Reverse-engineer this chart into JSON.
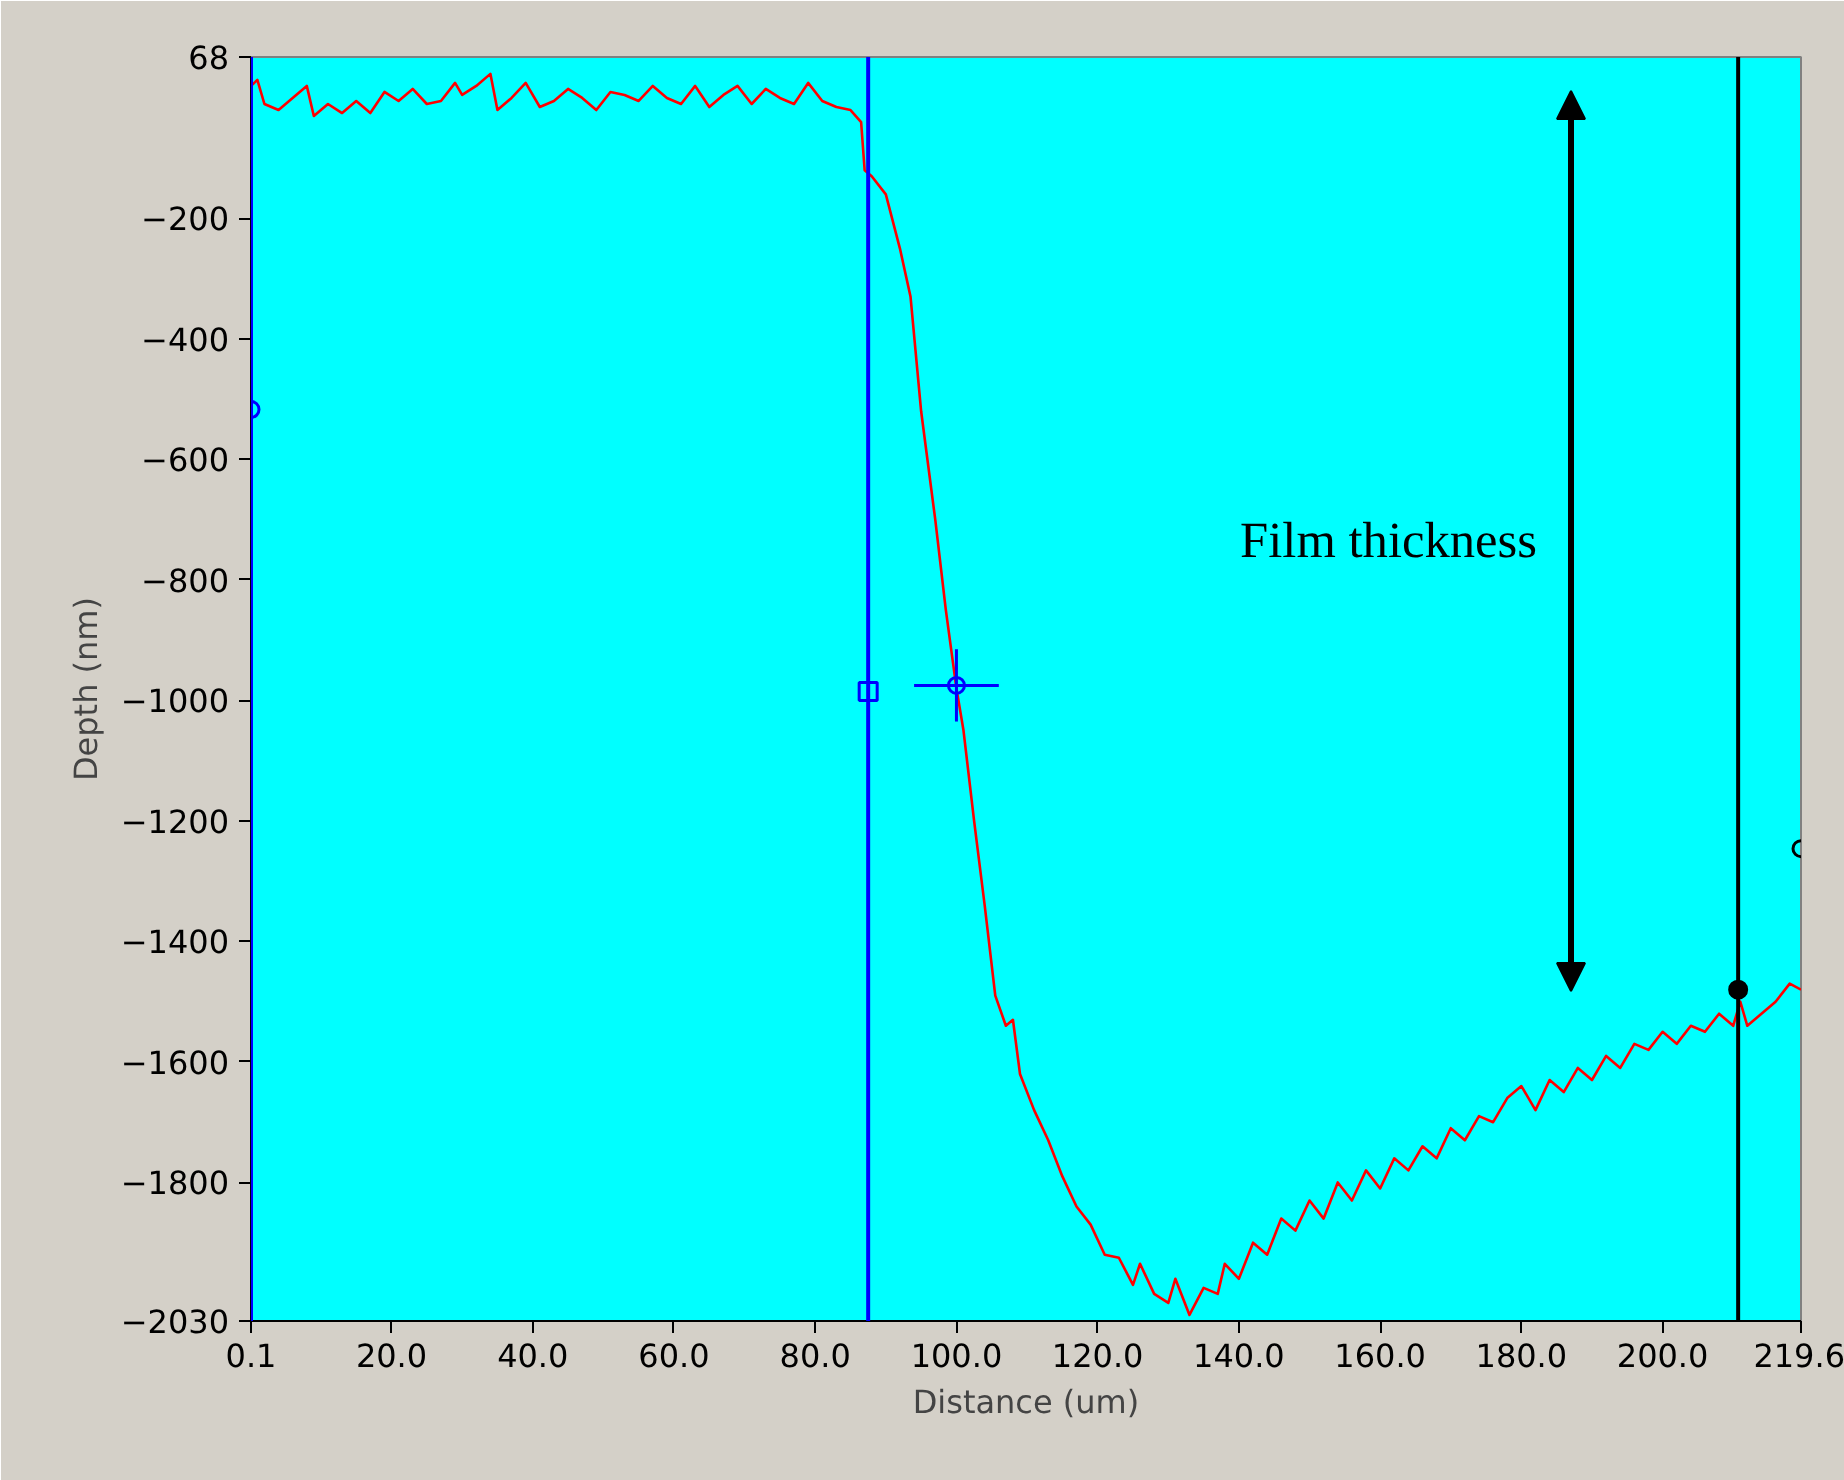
{
  "chart_data": {
    "type": "line",
    "xlabel": "Distance (um)",
    "ylabel": "Depth (nm)",
    "xlim": [
      0.1,
      219.6
    ],
    "ylim": [
      -2030,
      68
    ],
    "xticks": [
      {
        "value": 0.1,
        "label": "0.1"
      },
      {
        "value": 20,
        "label": "20.0"
      },
      {
        "value": 40,
        "label": "40.0"
      },
      {
        "value": 60,
        "label": "60.0"
      },
      {
        "value": 80,
        "label": "80.0"
      },
      {
        "value": 100,
        "label": "100.0"
      },
      {
        "value": 120,
        "label": "120.0"
      },
      {
        "value": 140,
        "label": "140.0"
      },
      {
        "value": 160,
        "label": "160.0"
      },
      {
        "value": 180,
        "label": "180.0"
      },
      {
        "value": 200,
        "label": "200.0"
      },
      {
        "value": 219.6,
        "label": "219.6"
      }
    ],
    "yticks": [
      68,
      -200,
      -400,
      -600,
      -800,
      -1000,
      -1200,
      -1400,
      -1600,
      -1800,
      -2030
    ],
    "grid": false,
    "series": [
      {
        "color": "#ff0000",
        "x": [
          0.1,
          1,
          2,
          4,
          6,
          8,
          9,
          11,
          13,
          15,
          17,
          19,
          21,
          23,
          25,
          27,
          29,
          30,
          32,
          34,
          35,
          37,
          39,
          41,
          43,
          45,
          47,
          49,
          51,
          53,
          55,
          57,
          59,
          61,
          63,
          65,
          67,
          69,
          71,
          73,
          75,
          77,
          79,
          81,
          83,
          85,
          86.5,
          87,
          88,
          90,
          92,
          93.5,
          95,
          97,
          98.5,
          100,
          101,
          102.5,
          104,
          105.5,
          107,
          108,
          109,
          111,
          113,
          115,
          117,
          119,
          121,
          123,
          125,
          126,
          128,
          130,
          131,
          133,
          135,
          137,
          138,
          140,
          142,
          144,
          146,
          148,
          150,
          152,
          154,
          156,
          158,
          160,
          162,
          164,
          166,
          168,
          170,
          172,
          174,
          176,
          178,
          180,
          182,
          184,
          186,
          188,
          190,
          192,
          194,
          196,
          198,
          200,
          202,
          204,
          206,
          208,
          210,
          211,
          212,
          214,
          216,
          218,
          219.6
        ],
        "values": [
          20,
          30,
          -10,
          -20,
          0,
          20,
          -30,
          -10,
          -25,
          -5,
          -25,
          10,
          -5,
          15,
          -10,
          -5,
          25,
          5,
          20,
          40,
          -20,
          0,
          25,
          -15,
          -5,
          15,
          0,
          -20,
          10,
          5,
          -5,
          20,
          0,
          -10,
          20,
          -15,
          5,
          20,
          -10,
          15,
          0,
          -10,
          25,
          -5,
          -15,
          -20,
          -40,
          -120,
          -130,
          -160,
          -250,
          -330,
          -520,
          -700,
          -850,
          -980,
          -1050,
          -1200,
          -1340,
          -1490,
          -1540,
          -1530,
          -1620,
          -1680,
          -1730,
          -1790,
          -1840,
          -1870,
          -1920,
          -1925,
          -1970,
          -1935,
          -1985,
          -2000,
          -1960,
          -2020,
          -1975,
          -1985,
          -1935,
          -1960,
          -1900,
          -1920,
          -1860,
          -1880,
          -1830,
          -1860,
          -1800,
          -1830,
          -1780,
          -1810,
          -1760,
          -1780,
          -1740,
          -1760,
          -1710,
          -1730,
          -1690,
          -1700,
          -1660,
          -1640,
          -1680,
          -1630,
          -1650,
          -1610,
          -1630,
          -1590,
          -1610,
          -1570,
          -1580,
          -1550,
          -1570,
          -1540,
          -1550,
          -1520,
          -1540,
          -1500,
          -1540,
          -1520,
          -1500,
          -1470,
          -1480
        ]
      },
      {
        "type": "scatter",
        "marker": "circle",
        "color": "#0000ff",
        "x": [
          100
        ],
        "values": [
          -975
        ],
        "errors": [
          60
        ],
        "xerrors": [
          6
        ]
      },
      {
        "type": "scatter",
        "marker": "circle",
        "color": "#0000ff",
        "x": [
          0.1
        ],
        "values": [
          -517
        ]
      },
      {
        "type": "scatter",
        "marker": "square",
        "color": "#0000ff",
        "x": [
          87.5
        ],
        "values": [
          -985
        ]
      },
      {
        "type": "scatter",
        "marker": "dot",
        "color": "#000000",
        "x": [
          210.7
        ],
        "values": [
          -1480
        ]
      },
      {
        "type": "scatter",
        "marker": "circle",
        "color": "#000000",
        "x": [
          219.6
        ],
        "values": [
          -1246
        ]
      }
    ],
    "ref_lines": [
      {
        "axis": "x",
        "value": 0.1,
        "color": "#0000ff"
      },
      {
        "axis": "x",
        "value": 87.5,
        "color": "#0000ff"
      },
      {
        "axis": "x",
        "value": 210.7,
        "color": "#000000"
      }
    ],
    "annotations": [
      "Film thickness"
    ]
  }
}
